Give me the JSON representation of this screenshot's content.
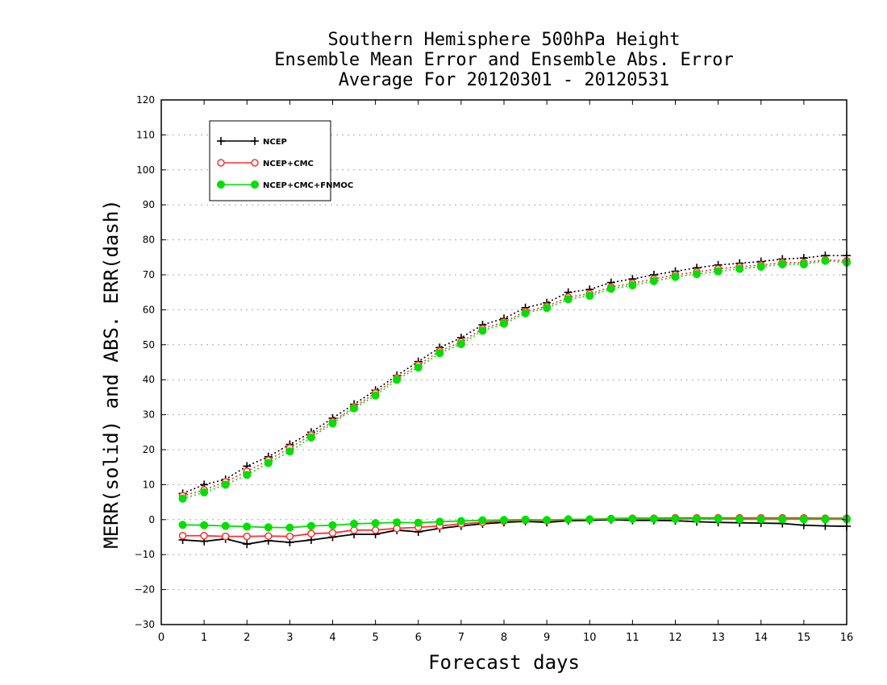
{
  "chart_data": {
    "type": "line",
    "title_lines": [
      "Southern Hemisphere 500hPa Height",
      "Ensemble Mean Error and Ensemble Abs. Error",
      "Average For 20120301 - 20120531"
    ],
    "xlabel": "Forecast days",
    "ylabel": "MERR(solid) and ABS. ERR(dash)",
    "xlim": [
      0,
      16
    ],
    "ylim": [
      -30,
      120
    ],
    "xticks": [
      0,
      1,
      2,
      3,
      4,
      5,
      6,
      7,
      8,
      9,
      10,
      11,
      12,
      13,
      14,
      15,
      16
    ],
    "yticks": [
      -30,
      -20,
      -10,
      0,
      10,
      20,
      30,
      40,
      50,
      60,
      70,
      80,
      90,
      100,
      110,
      120
    ],
    "grid": true,
    "legend_position": "top-left",
    "x": [
      0.5,
      1,
      1.5,
      2,
      2.5,
      3,
      3.5,
      4,
      4.5,
      5,
      5.5,
      6,
      6.5,
      7,
      7.5,
      8,
      8.5,
      9,
      9.5,
      10,
      10.5,
      11,
      11.5,
      12,
      12.5,
      13,
      13.5,
      14,
      14.5,
      15,
      15.5,
      16
    ],
    "series": [
      {
        "name": "NCEP",
        "color": "#000000",
        "marker": "plus",
        "merr": [
          -5.8,
          -6.2,
          -5.5,
          -7.0,
          -6.0,
          -6.5,
          -5.8,
          -5.0,
          -4.2,
          -4.2,
          -3.0,
          -3.5,
          -2.5,
          -1.8,
          -1.2,
          -0.8,
          -0.5,
          -0.8,
          -0.3,
          -0.2,
          0.0,
          -0.2,
          -0.2,
          -0.3,
          -0.6,
          -0.8,
          -0.9,
          -1.0,
          -1.1,
          -1.6,
          -1.8,
          -1.9
        ],
        "abs_err": [
          7.5,
          10.0,
          11.5,
          15.3,
          18.0,
          21.5,
          25.0,
          29.0,
          33.0,
          37.0,
          41.2,
          45.2,
          49.2,
          52.0,
          55.7,
          57.5,
          60.6,
          62.0,
          65.0,
          65.8,
          67.8,
          68.8,
          70.0,
          71.0,
          72.0,
          72.8,
          73.3,
          73.8,
          74.5,
          74.8,
          75.5,
          75.5
        ]
      },
      {
        "name": "NCEP+CMC",
        "color": "#ff3030",
        "marker": "open-circle",
        "merr": [
          -4.6,
          -4.6,
          -4.8,
          -4.8,
          -4.7,
          -4.8,
          -4.0,
          -3.8,
          -3.0,
          -3.0,
          -2.5,
          -2.2,
          -1.8,
          -1.2,
          -0.8,
          -0.4,
          -0.2,
          -0.3,
          0.0,
          0.1,
          0.3,
          0.4,
          0.4,
          0.5,
          0.5,
          0.5,
          0.5,
          0.5,
          0.5,
          0.5,
          0.4,
          0.4
        ],
        "abs_err": [
          6.8,
          8.5,
          10.8,
          13.8,
          17.0,
          20.5,
          24.2,
          28.0,
          32.2,
          36.2,
          40.5,
          44.2,
          48.2,
          50.8,
          54.6,
          56.5,
          59.5,
          61.0,
          63.6,
          64.6,
          66.5,
          67.6,
          68.8,
          70.0,
          70.8,
          71.7,
          72.3,
          72.8,
          73.5,
          73.5,
          74.3,
          74.0
        ]
      },
      {
        "name": "NCEP+CMC+FNMOC",
        "color": "#00e000",
        "marker": "filled-circle",
        "merr": [
          -1.5,
          -1.6,
          -1.8,
          -2.0,
          -2.2,
          -2.3,
          -1.8,
          -1.6,
          -1.2,
          -1.0,
          -0.8,
          -0.9,
          -0.6,
          -0.4,
          -0.2,
          -0.1,
          0.0,
          -0.1,
          0.1,
          0.1,
          0.2,
          0.2,
          0.2,
          0.2,
          0.2,
          0.2,
          0.1,
          0.1,
          0.1,
          0.1,
          0.1,
          0.1
        ],
        "abs_err": [
          6.0,
          7.8,
          10.0,
          12.8,
          16.2,
          19.5,
          23.5,
          27.5,
          31.8,
          35.5,
          40.0,
          43.5,
          47.6,
          50.2,
          54.0,
          56.0,
          59.0,
          60.5,
          63.0,
          64.0,
          66.0,
          67.0,
          68.2,
          69.4,
          70.2,
          71.0,
          71.7,
          72.3,
          73.0,
          73.0,
          74.0,
          73.5
        ]
      }
    ]
  }
}
